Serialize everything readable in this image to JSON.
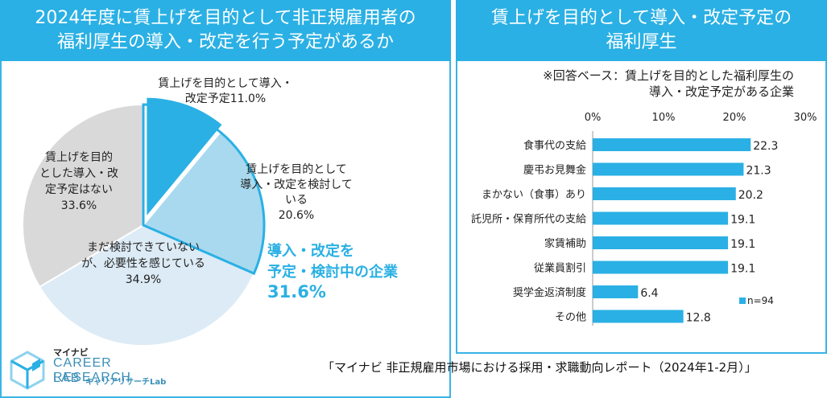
{
  "left_panel": {
    "title_line1": "2024年度に賃上げを目的として非正規雇用者の",
    "title_line2": "福利厚生の導入・改定を行う予定があるか"
  },
  "right_panel": {
    "title_line1": "賃上げを目的として導入・改定予定の",
    "title_line2": "福利厚生"
  },
  "source": "「マイナビ 非正規雇用市場における採用・求職動向レポート（2024年1-2月）」",
  "logo": {
    "small": "マイナビ",
    "main_line1": "CAREER RESEARCH",
    "main_line2": "LAB",
    "sub": "キャリアリサーチLab"
  },
  "colors": {
    "accent": "#2ab0e4",
    "slice_planned": "#2ab0e4",
    "slice_considering": "#a9d9ef",
    "slice_not_yet": "#dcebf5",
    "slice_none": "#d9d9d9",
    "bar": "#2ab0e4"
  },
  "chart_data": [
    {
      "type": "pie",
      "slices": [
        {
          "label_lines": [
            "賃上げを目的として導入・",
            "改定予定11.0%"
          ],
          "value": 11.0
        },
        {
          "label_lines": [
            "賃上げを目的として",
            "導入・改定を検討して",
            "いる",
            "20.6%"
          ],
          "value": 20.6
        },
        {
          "label_lines": [
            "まだ検討できていない",
            "が、必要性を感じている",
            "34.9%"
          ],
          "value": 34.9
        },
        {
          "label_lines": [
            "賃上げを目的",
            "とした導入・改",
            "定予定はない",
            "33.6%"
          ],
          "value": 33.6
        }
      ],
      "annotation_lines": [
        "導入・改定を",
        "予定・検討中の企業",
        "31.6%"
      ]
    },
    {
      "type": "bar",
      "orientation": "horizontal",
      "note_lines": [
        "※回答ベース：賃上げを目的とした福利厚生の",
        "導入・改定予定がある企業"
      ],
      "categories": [
        "食事代の支給",
        "慶弔お見舞金",
        "まかない（食事）あり",
        "託児所・保育所代の支給",
        "家賃補助",
        "従業員割引",
        "奨学金返済制度",
        "その他"
      ],
      "values": [
        22.3,
        21.3,
        20.2,
        19.1,
        19.1,
        19.1,
        6.4,
        12.8
      ],
      "value_labels": [
        "22.3",
        "21.3",
        "20.2",
        "19.1",
        "19.1",
        "19.1",
        "6.4",
        "12.8"
      ],
      "xlim": [
        0,
        30
      ],
      "tick_labels": [
        "0%",
        "10%",
        "20%",
        "30%"
      ],
      "legend": "n=94",
      "legend_position": "bottom-right"
    }
  ]
}
